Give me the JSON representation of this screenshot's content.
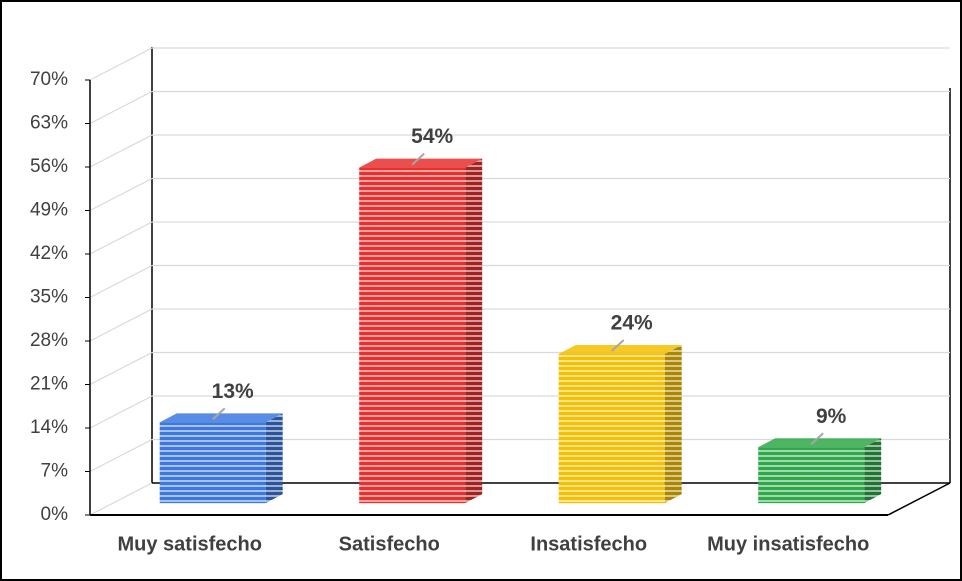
{
  "chart_data": {
    "type": "bar3d",
    "categories": [
      "Muy satisfecho",
      "Satisfecho",
      "Insatisfecho",
      "Muy insatisfecho"
    ],
    "values": [
      13,
      54,
      24,
      9
    ],
    "value_labels": [
      "13%",
      "54%",
      "24%",
      "9%"
    ],
    "colors": [
      "#3c78e0",
      "#e8302e",
      "#f5c000",
      "#2fa84a"
    ],
    "ylim": [
      0,
      70
    ],
    "yticks": [
      {
        "value": 0,
        "label": "0%"
      },
      {
        "value": 7,
        "label": "7%"
      },
      {
        "value": 14,
        "label": "14%"
      },
      {
        "value": 21,
        "label": "21%"
      },
      {
        "value": 28,
        "label": "28%"
      },
      {
        "value": 35,
        "label": "35%"
      },
      {
        "value": 42,
        "label": "42%"
      },
      {
        "value": 49,
        "label": "49%"
      },
      {
        "value": 56,
        "label": "56%"
      },
      {
        "value": 63,
        "label": "63%"
      },
      {
        "value": 70,
        "label": "70%"
      }
    ],
    "grid": true
  }
}
